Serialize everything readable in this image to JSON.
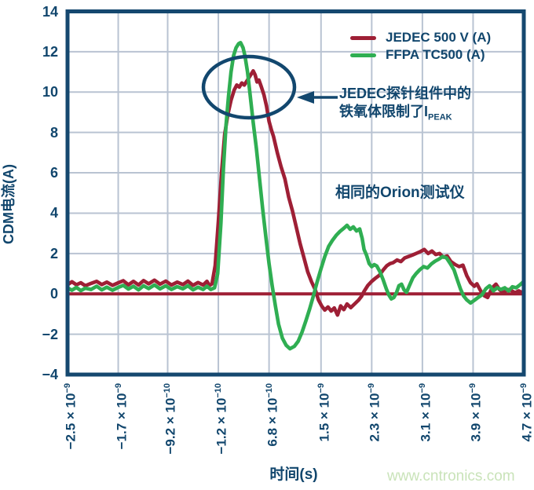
{
  "chart_data": {
    "type": "line",
    "xlabel": "时间(s)",
    "ylabel": "CDM电流(A)",
    "xlim_ns": [
      -2.5,
      4.7
    ],
    "ylim": [
      -4,
      14
    ],
    "grid": true,
    "legend_position": "top-right",
    "x_ticks": [
      {
        "base": "−2.5 × 10",
        "sup": "−9",
        "ns": -2.5
      },
      {
        "base": "−1.7 × 10",
        "sup": "−9",
        "ns": -1.7
      },
      {
        "base": "−9.2 × 10",
        "sup": "−10",
        "ns": -0.92
      },
      {
        "base": "−1.2 × 10",
        "sup": "−10",
        "ns": -0.12
      },
      {
        "base": "6.8 × 10",
        "sup": "−10",
        "ns": 0.68
      },
      {
        "base": "1.5 × 10",
        "sup": "−9",
        "ns": 1.5
      },
      {
        "base": "2.3 × 10",
        "sup": "−9",
        "ns": 2.3
      },
      {
        "base": "3.1 × 10",
        "sup": "−9",
        "ns": 3.1
      },
      {
        "base": "3.9 × 10",
        "sup": "−9",
        "ns": 3.9
      },
      {
        "base": "4.7 × 10",
        "sup": "−9",
        "ns": 4.7
      }
    ],
    "y_ticks": [
      {
        "label": "14",
        "value": 14
      },
      {
        "label": "12",
        "value": 12
      },
      {
        "label": "10",
        "value": 10
      },
      {
        "label": "8",
        "value": 8
      },
      {
        "label": "6",
        "value": 6
      },
      {
        "label": "4",
        "value": 4
      },
      {
        "label": "2",
        "value": 2
      },
      {
        "label": "0",
        "value": 0
      },
      {
        "label": "−2",
        "value": -2
      },
      {
        "label": "−4",
        "value": -4
      }
    ],
    "zero_line": {
      "value": 0,
      "color": "#9E1F35"
    },
    "series": [
      {
        "name": "JEDEC 500 V (A)",
        "color": "#9E1F35",
        "peak_A": 11.05,
        "points": [
          [
            -2.5,
            0.45
          ],
          [
            -2.43,
            0.6
          ],
          [
            -2.36,
            0.45
          ],
          [
            -2.29,
            0.55
          ],
          [
            -2.22,
            0.4
          ],
          [
            -2.13,
            0.52
          ],
          [
            -2.04,
            0.62
          ],
          [
            -1.96,
            0.46
          ],
          [
            -1.88,
            0.58
          ],
          [
            -1.79,
            0.42
          ],
          [
            -1.7,
            0.55
          ],
          [
            -1.62,
            0.65
          ],
          [
            -1.54,
            0.45
          ],
          [
            -1.46,
            0.62
          ],
          [
            -1.38,
            0.44
          ],
          [
            -1.3,
            0.66
          ],
          [
            -1.22,
            0.5
          ],
          [
            -1.13,
            0.68
          ],
          [
            -1.04,
            0.48
          ],
          [
            -0.95,
            0.63
          ],
          [
            -0.86,
            0.44
          ],
          [
            -0.77,
            0.58
          ],
          [
            -0.68,
            0.46
          ],
          [
            -0.6,
            0.63
          ],
          [
            -0.52,
            0.42
          ],
          [
            -0.44,
            0.56
          ],
          [
            -0.36,
            0.44
          ],
          [
            -0.3,
            0.62
          ],
          [
            -0.26,
            0.42
          ],
          [
            -0.22,
            0.5
          ],
          [
            -0.17,
            1.4
          ],
          [
            -0.12,
            3.6
          ],
          [
            -0.07,
            6.0
          ],
          [
            -0.02,
            7.9
          ],
          [
            0.03,
            8.9
          ],
          [
            0.08,
            9.6
          ],
          [
            0.13,
            10.1
          ],
          [
            0.17,
            10.35
          ],
          [
            0.21,
            10.25
          ],
          [
            0.25,
            10.45
          ],
          [
            0.29,
            10.35
          ],
          [
            0.34,
            10.6
          ],
          [
            0.39,
            10.85
          ],
          [
            0.43,
            11.05
          ],
          [
            0.46,
            10.85
          ],
          [
            0.49,
            10.5
          ],
          [
            0.52,
            10.6
          ],
          [
            0.56,
            10.25
          ],
          [
            0.6,
            9.85
          ],
          [
            0.64,
            9.3
          ],
          [
            0.68,
            8.55
          ],
          [
            0.72,
            8.1
          ],
          [
            0.75,
            7.8
          ],
          [
            0.81,
            7.0
          ],
          [
            0.87,
            6.3
          ],
          [
            0.93,
            5.7
          ],
          [
            0.99,
            4.8
          ],
          [
            1.05,
            4.1
          ],
          [
            1.11,
            3.3
          ],
          [
            1.17,
            2.5
          ],
          [
            1.23,
            1.8
          ],
          [
            1.29,
            1.1
          ],
          [
            1.35,
            0.6
          ],
          [
            1.41,
            0.2
          ],
          [
            1.46,
            -0.3
          ],
          [
            1.51,
            -0.6
          ],
          [
            1.56,
            -0.8
          ],
          [
            1.61,
            -0.65
          ],
          [
            1.66,
            -0.85
          ],
          [
            1.71,
            -0.7
          ],
          [
            1.76,
            -1.05
          ],
          [
            1.81,
            -0.6
          ],
          [
            1.86,
            -0.78
          ],
          [
            1.91,
            -0.5
          ],
          [
            1.97,
            -0.68
          ],
          [
            2.03,
            -0.5
          ],
          [
            2.09,
            -0.32
          ],
          [
            2.14,
            -0.12
          ],
          [
            2.18,
            0.12
          ],
          [
            2.24,
            0.42
          ],
          [
            2.3,
            0.62
          ],
          [
            2.36,
            0.78
          ],
          [
            2.42,
            0.92
          ],
          [
            2.48,
            1.18
          ],
          [
            2.54,
            1.4
          ],
          [
            2.59,
            1.5
          ],
          [
            2.64,
            1.55
          ],
          [
            2.7,
            1.68
          ],
          [
            2.76,
            1.6
          ],
          [
            2.82,
            1.78
          ],
          [
            2.88,
            1.85
          ],
          [
            2.94,
            1.92
          ],
          [
            3.0,
            2.0
          ],
          [
            3.07,
            2.1
          ],
          [
            3.13,
            2.2
          ],
          [
            3.19,
            2.0
          ],
          [
            3.25,
            2.12
          ],
          [
            3.31,
            1.95
          ],
          [
            3.37,
            2.0
          ],
          [
            3.43,
            1.82
          ],
          [
            3.49,
            1.88
          ],
          [
            3.55,
            1.6
          ],
          [
            3.62,
            1.45
          ],
          [
            3.68,
            1.35
          ],
          [
            3.74,
            1.42
          ],
          [
            3.8,
            0.9
          ],
          [
            3.86,
            0.55
          ],
          [
            3.92,
            0.38
          ],
          [
            3.96,
            0.5
          ],
          [
            4.02,
            0.15
          ],
          [
            4.08,
            -0.1
          ],
          [
            4.13,
            -0.18
          ],
          [
            4.2,
            0.3
          ],
          [
            4.26,
            0.48
          ],
          [
            4.32,
            0.2
          ],
          [
            4.38,
            0.05
          ],
          [
            4.44,
            0.22
          ],
          [
            4.5,
            0.18
          ],
          [
            4.56,
            0.05
          ],
          [
            4.62,
            0.15
          ],
          [
            4.66,
            0.08
          ],
          [
            4.7,
            0.12
          ]
        ]
      },
      {
        "name": "FFPA TC500 (A)",
        "color": "#2FAE52",
        "peak_A": 12.45,
        "points": [
          [
            -2.5,
            0.3
          ],
          [
            -2.43,
            0.18
          ],
          [
            -2.36,
            0.32
          ],
          [
            -2.29,
            0.16
          ],
          [
            -2.22,
            0.28
          ],
          [
            -2.13,
            0.22
          ],
          [
            -2.04,
            0.38
          ],
          [
            -1.96,
            0.2
          ],
          [
            -1.88,
            0.33
          ],
          [
            -1.79,
            0.18
          ],
          [
            -1.7,
            0.32
          ],
          [
            -1.62,
            0.42
          ],
          [
            -1.54,
            0.24
          ],
          [
            -1.46,
            0.38
          ],
          [
            -1.38,
            0.2
          ],
          [
            -1.3,
            0.4
          ],
          [
            -1.22,
            0.26
          ],
          [
            -1.13,
            0.44
          ],
          [
            -1.04,
            0.25
          ],
          [
            -0.95,
            0.4
          ],
          [
            -0.86,
            0.22
          ],
          [
            -0.77,
            0.36
          ],
          [
            -0.68,
            0.25
          ],
          [
            -0.6,
            0.4
          ],
          [
            -0.52,
            0.2
          ],
          [
            -0.44,
            0.33
          ],
          [
            -0.36,
            0.22
          ],
          [
            -0.3,
            0.38
          ],
          [
            -0.24,
            0.22
          ],
          [
            -0.18,
            0.3
          ],
          [
            -0.13,
            1.0
          ],
          [
            -0.08,
            3.5
          ],
          [
            -0.04,
            6.2
          ],
          [
            0.0,
            8.3
          ],
          [
            0.04,
            9.8
          ],
          [
            0.08,
            11.0
          ],
          [
            0.12,
            11.8
          ],
          [
            0.16,
            12.2
          ],
          [
            0.2,
            12.4
          ],
          [
            0.23,
            12.45
          ],
          [
            0.27,
            12.2
          ],
          [
            0.3,
            11.8
          ],
          [
            0.34,
            11.0
          ],
          [
            0.38,
            9.9
          ],
          [
            0.43,
            8.5
          ],
          [
            0.48,
            7.2
          ],
          [
            0.53,
            5.7
          ],
          [
            0.58,
            4.2
          ],
          [
            0.63,
            2.8
          ],
          [
            0.68,
            1.5
          ],
          [
            0.73,
            0.4
          ],
          [
            0.78,
            -0.6
          ],
          [
            0.83,
            -1.5
          ],
          [
            0.89,
            -2.2
          ],
          [
            0.95,
            -2.55
          ],
          [
            1.01,
            -2.72
          ],
          [
            1.08,
            -2.6
          ],
          [
            1.14,
            -2.35
          ],
          [
            1.2,
            -1.9
          ],
          [
            1.26,
            -1.35
          ],
          [
            1.32,
            -0.75
          ],
          [
            1.38,
            -0.1
          ],
          [
            1.44,
            0.6
          ],
          [
            1.5,
            1.25
          ],
          [
            1.56,
            1.85
          ],
          [
            1.62,
            2.35
          ],
          [
            1.68,
            2.65
          ],
          [
            1.74,
            2.9
          ],
          [
            1.8,
            3.1
          ],
          [
            1.86,
            3.25
          ],
          [
            1.91,
            3.4
          ],
          [
            1.96,
            3.2
          ],
          [
            2.01,
            3.32
          ],
          [
            2.06,
            3.12
          ],
          [
            2.11,
            3.22
          ],
          [
            2.15,
            2.75
          ],
          [
            2.18,
            2.2
          ],
          [
            2.22,
            1.9
          ],
          [
            2.26,
            1.5
          ],
          [
            2.3,
            1.35
          ],
          [
            2.34,
            1.45
          ],
          [
            2.38,
            1.38
          ],
          [
            2.43,
            1.1
          ],
          [
            2.48,
            0.7
          ],
          [
            2.53,
            0.25
          ],
          [
            2.57,
            -0.05
          ],
          [
            2.61,
            -0.25
          ],
          [
            2.65,
            -0.18
          ],
          [
            2.69,
            0.05
          ],
          [
            2.73,
            0.4
          ],
          [
            2.77,
            0.48
          ],
          [
            2.81,
            0.2
          ],
          [
            2.85,
            0.08
          ],
          [
            2.9,
            0.45
          ],
          [
            2.95,
            0.8
          ],
          [
            3.0,
            1.0
          ],
          [
            3.06,
            1.2
          ],
          [
            3.12,
            1.35
          ],
          [
            3.18,
            1.28
          ],
          [
            3.24,
            1.48
          ],
          [
            3.3,
            1.62
          ],
          [
            3.36,
            1.72
          ],
          [
            3.42,
            1.85
          ],
          [
            3.48,
            1.78
          ],
          [
            3.54,
            1.5
          ],
          [
            3.6,
            1.18
          ],
          [
            3.65,
            0.7
          ],
          [
            3.7,
            0.25
          ],
          [
            3.75,
            -0.1
          ],
          [
            3.8,
            -0.3
          ],
          [
            3.86,
            -0.45
          ],
          [
            3.92,
            -0.32
          ],
          [
            3.98,
            -0.18
          ],
          [
            4.04,
            -0.05
          ],
          [
            4.1,
            0.25
          ],
          [
            4.16,
            0.4
          ],
          [
            4.22,
            0.15
          ],
          [
            4.28,
            0.3
          ],
          [
            4.34,
            0.22
          ],
          [
            4.4,
            0.3
          ],
          [
            4.46,
            0.15
          ],
          [
            4.52,
            0.35
          ],
          [
            4.58,
            0.3
          ],
          [
            4.64,
            0.45
          ],
          [
            4.7,
            0.62
          ]
        ]
      }
    ]
  },
  "annotations": {
    "ferrite_note": {
      "line1": "JEDEC探针组件中的",
      "line2_base": "铁氧体限制了I",
      "line2_sub": "PEAK"
    },
    "tester_note": "相同的Orion测试仪"
  },
  "watermark": "www.cntronics.com",
  "colors": {
    "axis_navy": "#15486F",
    "text_navy": "#11466D",
    "grid": "#B9C3D2",
    "red_series": "#9E1F35",
    "green_series": "#2FAE52",
    "watermark_green": "#C9E3B9"
  }
}
